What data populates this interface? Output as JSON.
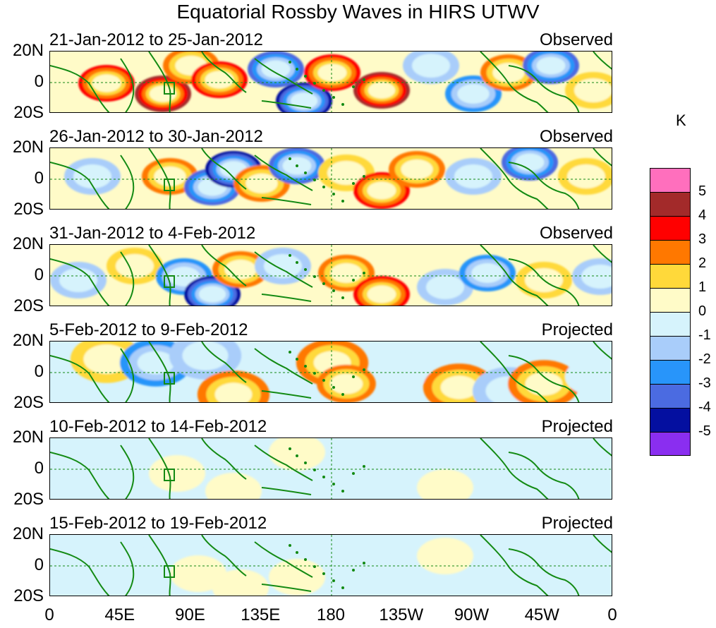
{
  "title": "Equatorial Rossby Waves in HIRS UTWV",
  "panels": [
    {
      "date": "21-Jan-2012 to 25-Jan-2012",
      "kind": "Observed",
      "intensity": 1.0
    },
    {
      "date": "26-Jan-2012 to 30-Jan-2012",
      "kind": "Observed",
      "intensity": 1.0
    },
    {
      "date": "31-Jan-2012 to 4-Feb-2012",
      "kind": "Observed",
      "intensity": 1.0
    },
    {
      "date": "5-Feb-2012 to 9-Feb-2012",
      "kind": "Projected",
      "intensity": 0.7
    },
    {
      "date": "10-Feb-2012 to 14-Feb-2012",
      "kind": "Projected",
      "intensity": 0.45
    },
    {
      "date": "15-Feb-2012 to 19-Feb-2012",
      "kind": "Projected",
      "intensity": 0.35
    }
  ],
  "lat_labels": [
    "20N",
    "0",
    "20S"
  ],
  "lon_labels": [
    "0",
    "45E",
    "90E",
    "135E",
    "180",
    "135W",
    "90W",
    "45W",
    "0"
  ],
  "colorbar": {
    "unit": "K",
    "levels": [
      "5",
      "4",
      "3",
      "2",
      "1",
      "0",
      "-1",
      "-2",
      "-3",
      "-4",
      "-5"
    ],
    "colors": [
      "#ff6fbd",
      "#a32a2a",
      "#ff0000",
      "#ff7800",
      "#ffd93a",
      "#fffbc8",
      "#d6f3fc",
      "#a9cdfa",
      "#2895fa",
      "#4b6be1",
      "#040fa0",
      "#8a2ef0"
    ]
  },
  "colors": {
    "coast": "#138a13",
    "grid_line": "#138a13",
    "box": "#138a13"
  }
}
